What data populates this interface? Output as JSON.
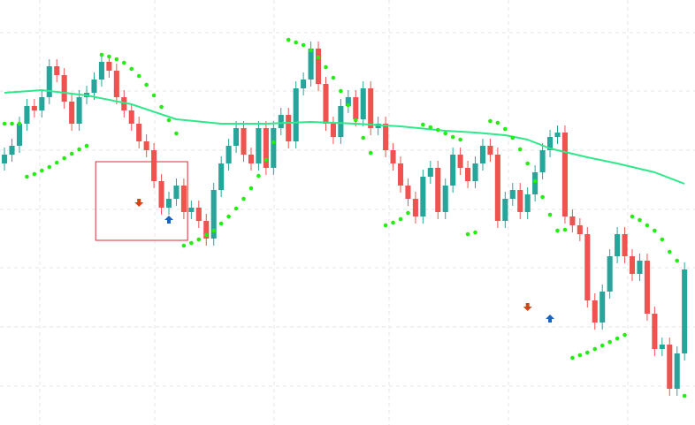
{
  "chart_data": {
    "type": "candlestick",
    "xlim": [
      -0.6,
      92.4
    ],
    "ylim": [
      0,
      481
    ],
    "up_color": "#26a69a",
    "down_color": "#ef5350",
    "open": [
      296,
      306,
      316,
      341,
      361,
      356,
      371,
      406,
      396,
      366,
      341,
      371,
      376,
      391,
      411,
      401,
      371,
      356,
      341,
      321,
      311,
      276,
      246,
      256,
      271,
      241,
      246,
      231,
      211,
      266,
      296,
      316,
      336,
      306,
      296,
      336,
      291,
      336,
      351,
      321,
      381,
      391,
      426,
      386,
      341,
      326,
      361,
      371,
      346,
      381,
      336,
      341,
      311,
      296,
      271,
      256,
      236,
      281,
      291,
      241,
      271,
      306,
      291,
      276,
      296,
      316,
      306,
      231,
      256,
      266,
      241,
      261,
      286,
      311,
      326,
      331,
      236,
      226,
      216,
      141,
      116,
      151,
      191,
      216,
      191,
      171,
      186,
      126,
      86,
      91,
      41,
      81
    ],
    "high": [
      314,
      324,
      349,
      369,
      369,
      379,
      414,
      414,
      404,
      374,
      379,
      384,
      399,
      419,
      419,
      409,
      379,
      364,
      349,
      329,
      319,
      284,
      264,
      279,
      279,
      254,
      254,
      239,
      274,
      304,
      324,
      344,
      344,
      314,
      344,
      344,
      344,
      359,
      359,
      389,
      399,
      434,
      434,
      394,
      349,
      369,
      379,
      379,
      389,
      389,
      349,
      349,
      319,
      304,
      279,
      264,
      289,
      299,
      299,
      279,
      314,
      314,
      299,
      304,
      324,
      324,
      314,
      264,
      274,
      274,
      269,
      294,
      319,
      334,
      339,
      339,
      244,
      234,
      224,
      149,
      159,
      199,
      224,
      224,
      199,
      194,
      194,
      134,
      99,
      99,
      89,
      184
    ],
    "low": [
      288,
      298,
      308,
      333,
      348,
      348,
      363,
      388,
      358,
      333,
      333,
      363,
      368,
      383,
      393,
      363,
      348,
      333,
      313,
      303,
      268,
      238,
      238,
      248,
      233,
      233,
      223,
      203,
      203,
      258,
      288,
      308,
      298,
      288,
      288,
      283,
      283,
      328,
      313,
      313,
      373,
      383,
      378,
      333,
      318,
      318,
      353,
      338,
      338,
      328,
      328,
      303,
      288,
      263,
      248,
      228,
      228,
      273,
      233,
      233,
      263,
      283,
      268,
      268,
      288,
      298,
      223,
      223,
      248,
      233,
      233,
      253,
      278,
      303,
      318,
      228,
      218,
      208,
      133,
      108,
      108,
      143,
      183,
      183,
      163,
      163,
      118,
      78,
      78,
      33,
      33,
      73
    ],
    "close": [
      306,
      316,
      341,
      361,
      356,
      371,
      406,
      396,
      366,
      341,
      371,
      376,
      391,
      411,
      401,
      371,
      356,
      341,
      321,
      311,
      276,
      246,
      256,
      271,
      241,
      246,
      231,
      211,
      266,
      296,
      316,
      336,
      306,
      296,
      336,
      291,
      336,
      351,
      321,
      381,
      391,
      426,
      386,
      341,
      326,
      361,
      371,
      346,
      381,
      336,
      341,
      311,
      296,
      271,
      256,
      236,
      281,
      291,
      241,
      271,
      306,
      291,
      276,
      296,
      316,
      306,
      231,
      256,
      266,
      241,
      261,
      286,
      311,
      326,
      331,
      236,
      226,
      216,
      141,
      116,
      151,
      191,
      216,
      191,
      171,
      186,
      126,
      86,
      91,
      41,
      81,
      176
    ],
    "moving_average": {
      "color": "#2ee88a",
      "x": [
        0,
        5,
        11,
        17,
        23,
        29,
        35,
        41,
        47,
        53,
        59,
        63,
        67,
        70,
        73,
        78,
        82,
        87,
        91
      ],
      "values": [
        376,
        379,
        373,
        363,
        346,
        341,
        341,
        343,
        341,
        338,
        333,
        331,
        328,
        323,
        313,
        303,
        296,
        286,
        273
      ]
    },
    "sar": {
      "color": "#22ee11",
      "x": [
        0,
        1,
        2,
        3,
        4,
        5,
        6,
        7,
        8,
        9,
        10,
        11,
        13,
        14,
        15,
        16,
        17,
        18,
        19,
        20,
        21,
        22,
        23,
        24,
        25,
        26,
        27,
        28,
        29,
        30,
        31,
        32,
        33,
        34,
        35,
        36,
        38,
        39,
        40,
        41,
        42,
        43,
        44,
        45,
        46,
        47,
        48,
        49,
        51,
        52,
        53,
        54,
        56,
        57,
        58,
        59,
        60,
        61,
        62,
        63,
        65,
        66,
        67,
        68,
        69,
        70,
        71,
        72,
        73,
        74,
        75,
        76,
        77,
        78,
        79,
        80,
        81,
        82,
        83,
        84,
        85,
        86,
        87,
        88,
        89,
        90,
        91
      ],
      "values": [
        341,
        341,
        341,
        281,
        284,
        288,
        292,
        297,
        302,
        307,
        312,
        316,
        419,
        417,
        414,
        410,
        403,
        395,
        385,
        373,
        360,
        345,
        330,
        203,
        206,
        210,
        215,
        220,
        228,
        236,
        245,
        256,
        268,
        282,
        300,
        320,
        436,
        433,
        430,
        424,
        416,
        405,
        393,
        378,
        362,
        345,
        325,
        308,
        226,
        229,
        233,
        240,
        340,
        337,
        334,
        330,
        326,
        323,
        216,
        218,
        344,
        342,
        335,
        325,
        312,
        296,
        276,
        258,
        238,
        220,
        221,
        76,
        79,
        82,
        86,
        90,
        94,
        98,
        102,
        236,
        232,
        226,
        220,
        210,
        196,
        186,
        33
      ]
    },
    "signals": {
      "sell": {
        "color": "#d84315",
        "x": [
          18,
          70
        ],
        "values": [
          251,
          133
        ]
      },
      "buy": {
        "color": "#1565c0",
        "x": [
          22,
          73
        ],
        "values": [
          233,
          121
        ]
      }
    },
    "highlight": {
      "color": "#d32f2f",
      "x": [
        12.2,
        24.5
      ],
      "values": [
        298,
        209
      ]
    }
  }
}
